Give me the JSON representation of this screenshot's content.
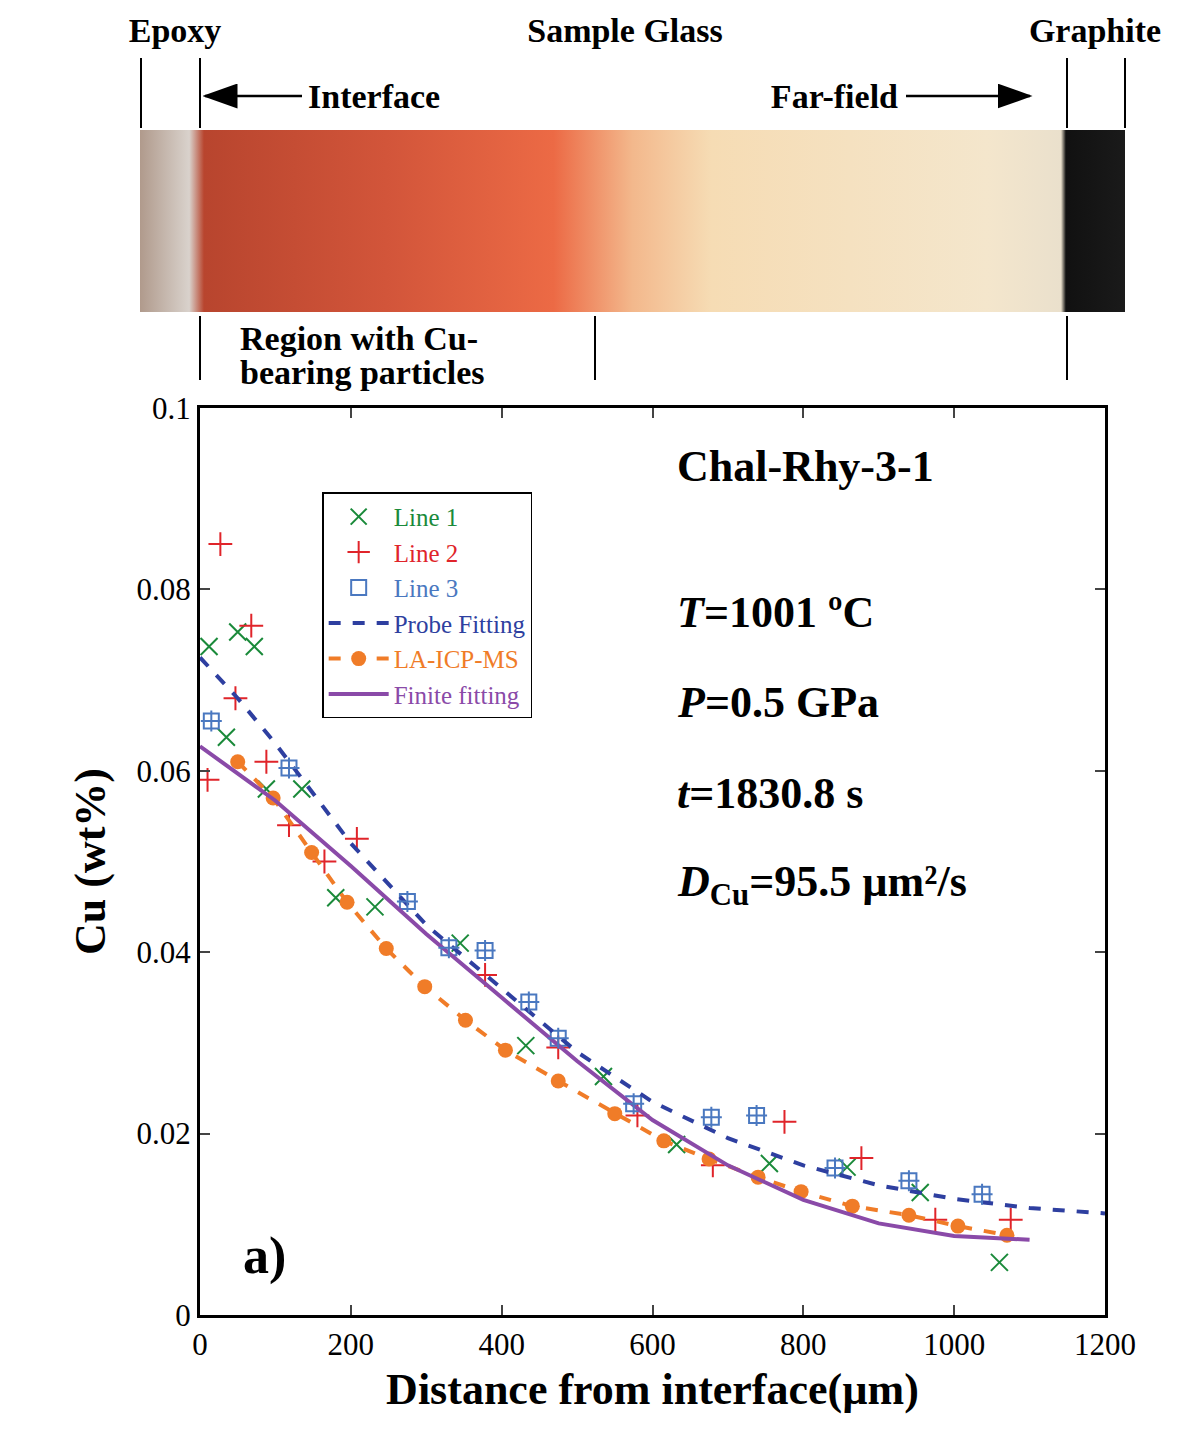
{
  "header_labels": {
    "left": "Epoxy",
    "middle": "Sample Glass",
    "right": "Graphite",
    "interface": "Interface",
    "far_field": "Far-field",
    "particles": "Region with Cu-bearing particles"
  },
  "chart_data": {
    "type": "scatter",
    "title": "Chal-Rhy-3-1",
    "panel_label": "a)",
    "parameters": [
      {
        "symbol": "T",
        "text": "=1001 ºC"
      },
      {
        "symbol": "P",
        "text": "=0.5 GPa"
      },
      {
        "symbol": "t",
        "text": "=1830.8 s"
      },
      {
        "symbol": "D",
        "sub": "Cu",
        "text": "=95.5 µm²/s"
      }
    ],
    "x_label": "Distance from interface(µm)",
    "y_label": "Cu (wt%)",
    "xlim": [
      0,
      1200
    ],
    "ylim": [
      0,
      0.1
    ],
    "xticks": [
      0,
      200,
      400,
      600,
      800,
      1000,
      1200
    ],
    "yticks": [
      0,
      0.02,
      0.04,
      0.06,
      0.08,
      0.1
    ],
    "grid": false,
    "legend": "top left",
    "series": [
      {
        "name": "Line 1",
        "color": "#1a8a3a",
        "type": "scatter",
        "marker": "x",
        "x": [
          12,
          35,
          50,
          72,
          88,
          135,
          180,
          232,
          345,
          432,
          535,
          632,
          755,
          858,
          955,
          1060
        ],
        "values": [
          0.0737,
          0.0637,
          0.0753,
          0.0737,
          0.058,
          0.058,
          0.046,
          0.045,
          0.041,
          0.0297,
          0.0263,
          0.0188,
          0.0167,
          0.0163,
          0.0135,
          0.0058
        ]
      },
      {
        "name": "Line 2",
        "color": "#e0242a",
        "type": "scatter",
        "marker": "cross",
        "x": [
          10,
          27,
          47,
          68,
          88,
          118,
          165,
          208,
          378,
          475,
          580,
          680,
          775,
          877,
          975,
          1075
        ],
        "values": [
          0.059,
          0.085,
          0.068,
          0.076,
          0.061,
          0.054,
          0.05,
          0.0525,
          0.0375,
          0.0295,
          0.022,
          0.0165,
          0.0213,
          0.0173,
          0.0105,
          0.0105
        ]
      },
      {
        "name": "Line 3",
        "color": "#4a78c0",
        "type": "scatter",
        "marker": "square-cross",
        "x": [
          15,
          118,
          275,
          330,
          378,
          436,
          475,
          575,
          678,
          738,
          842,
          940,
          1037
        ],
        "values": [
          0.0655,
          0.0603,
          0.0456,
          0.0405,
          0.0402,
          0.0345,
          0.0305,
          0.0233,
          0.0218,
          0.022,
          0.0162,
          0.0148,
          0.0133
        ]
      },
      {
        "name": "Probe Fitting",
        "color": "#2e3fa0",
        "type": "line",
        "line_style": "dash",
        "x": [
          0,
          50,
          100,
          200,
          300,
          400,
          500,
          600,
          700,
          800,
          900,
          1000,
          1100,
          1200
        ],
        "values": [
          0.0725,
          0.068,
          0.063,
          0.052,
          0.043,
          0.036,
          0.029,
          0.0235,
          0.0195,
          0.0165,
          0.0143,
          0.0128,
          0.0118,
          0.0112
        ]
      },
      {
        "name": "LA-ICP-MS",
        "color": "#f07c28",
        "type": "line",
        "line_style": "dash",
        "marker": "circle",
        "x": [
          50,
          97,
          148,
          195,
          247,
          298,
          352,
          405,
          475,
          550,
          615,
          675,
          740,
          797,
          865,
          940,
          1005,
          1070
        ],
        "values": [
          0.061,
          0.057,
          0.051,
          0.0455,
          0.0404,
          0.0362,
          0.0325,
          0.0292,
          0.0258,
          0.0222,
          0.0192,
          0.0172,
          0.0152,
          0.0136,
          0.012,
          0.011,
          0.0098,
          0.0088
        ]
      },
      {
        "name": "Finite fitting",
        "color": "#8a4aa8",
        "type": "line",
        "line_style": "solid",
        "x": [
          0,
          100,
          200,
          300,
          400,
          500,
          600,
          700,
          800,
          900,
          1000,
          1100
        ],
        "values": [
          0.0627,
          0.0567,
          0.0495,
          0.042,
          0.035,
          0.028,
          0.0215,
          0.0165,
          0.0127,
          0.0101,
          0.0087,
          0.0083
        ]
      }
    ]
  }
}
